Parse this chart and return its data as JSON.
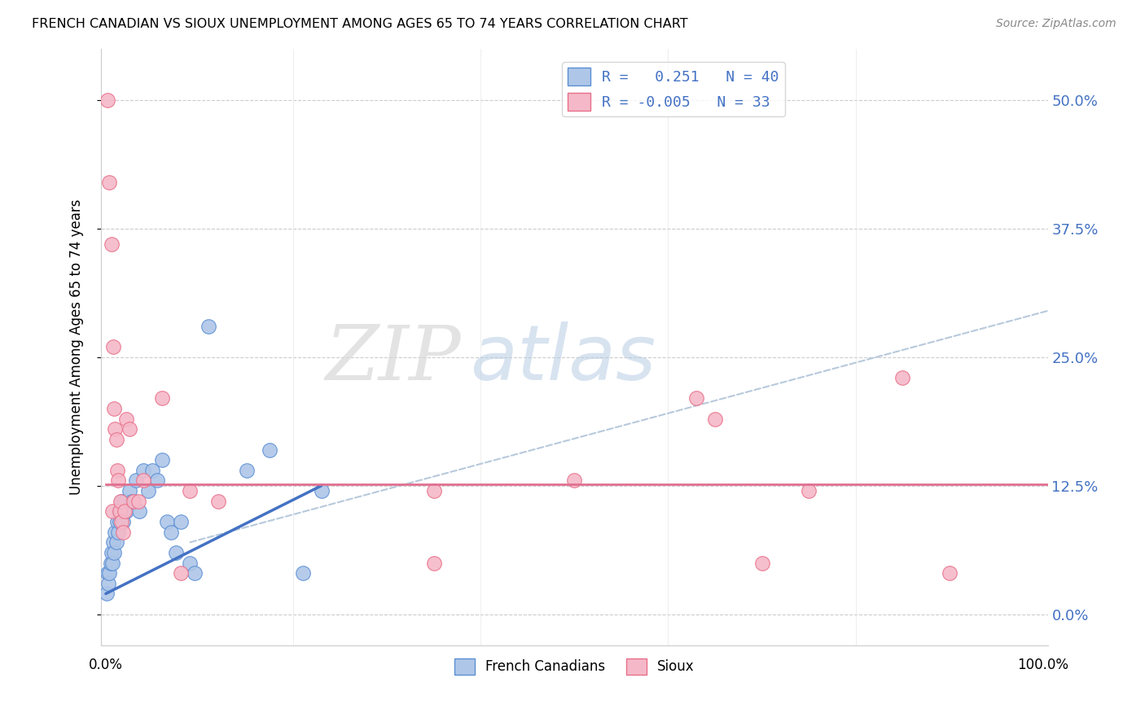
{
  "title": "FRENCH CANADIAN VS SIOUX UNEMPLOYMENT AMONG AGES 65 TO 74 YEARS CORRELATION CHART",
  "source": "Source: ZipAtlas.com",
  "ylabel": "Unemployment Among Ages 65 to 74 years",
  "ytick_labels": [
    "0.0%",
    "12.5%",
    "25.0%",
    "37.5%",
    "50.0%"
  ],
  "ytick_values": [
    0.0,
    0.125,
    0.25,
    0.375,
    0.5
  ],
  "xlim": [
    -0.005,
    1.005
  ],
  "ylim": [
    -0.03,
    0.55
  ],
  "legend_label1": "R =   0.251   N = 40",
  "legend_label2": "R = -0.005   N = 33",
  "watermark_zip": "ZIP",
  "watermark_atlas": "atlas",
  "blue_color": "#aec6e8",
  "pink_color": "#f5b8c8",
  "blue_edge_color": "#5b8fd4",
  "pink_edge_color": "#e8708a",
  "blue_line_color": "#4472c4",
  "pink_line_color": "#e07090",
  "right_label_color": "#4472c4",
  "blue_scatter": [
    [
      0.001,
      0.02
    ],
    [
      0.002,
      0.04
    ],
    [
      0.003,
      0.03
    ],
    [
      0.004,
      0.04
    ],
    [
      0.005,
      0.05
    ],
    [
      0.006,
      0.06
    ],
    [
      0.007,
      0.05
    ],
    [
      0.008,
      0.07
    ],
    [
      0.009,
      0.06
    ],
    [
      0.01,
      0.08
    ],
    [
      0.011,
      0.07
    ],
    [
      0.012,
      0.09
    ],
    [
      0.013,
      0.08
    ],
    [
      0.014,
      0.1
    ],
    [
      0.015,
      0.09
    ],
    [
      0.016,
      0.1
    ],
    [
      0.017,
      0.11
    ],
    [
      0.018,
      0.09
    ],
    [
      0.02,
      0.11
    ],
    [
      0.022,
      0.1
    ],
    [
      0.025,
      0.12
    ],
    [
      0.028,
      0.11
    ],
    [
      0.032,
      0.13
    ],
    [
      0.036,
      0.1
    ],
    [
      0.04,
      0.14
    ],
    [
      0.045,
      0.12
    ],
    [
      0.05,
      0.14
    ],
    [
      0.055,
      0.13
    ],
    [
      0.06,
      0.15
    ],
    [
      0.065,
      0.09
    ],
    [
      0.07,
      0.08
    ],
    [
      0.075,
      0.06
    ],
    [
      0.08,
      0.09
    ],
    [
      0.09,
      0.05
    ],
    [
      0.095,
      0.04
    ],
    [
      0.11,
      0.28
    ],
    [
      0.15,
      0.14
    ],
    [
      0.175,
      0.16
    ],
    [
      0.21,
      0.04
    ],
    [
      0.23,
      0.12
    ]
  ],
  "pink_scatter": [
    [
      0.002,
      0.5
    ],
    [
      0.004,
      0.42
    ],
    [
      0.006,
      0.36
    ],
    [
      0.007,
      0.1
    ],
    [
      0.008,
      0.26
    ],
    [
      0.009,
      0.2
    ],
    [
      0.01,
      0.18
    ],
    [
      0.011,
      0.17
    ],
    [
      0.012,
      0.14
    ],
    [
      0.013,
      0.13
    ],
    [
      0.015,
      0.1
    ],
    [
      0.016,
      0.11
    ],
    [
      0.017,
      0.09
    ],
    [
      0.018,
      0.08
    ],
    [
      0.02,
      0.1
    ],
    [
      0.022,
      0.19
    ],
    [
      0.025,
      0.18
    ],
    [
      0.03,
      0.11
    ],
    [
      0.035,
      0.11
    ],
    [
      0.04,
      0.13
    ],
    [
      0.06,
      0.21
    ],
    [
      0.08,
      0.04
    ],
    [
      0.09,
      0.12
    ],
    [
      0.12,
      0.11
    ],
    [
      0.35,
      0.12
    ],
    [
      0.35,
      0.05
    ],
    [
      0.5,
      0.13
    ],
    [
      0.63,
      0.21
    ],
    [
      0.65,
      0.19
    ],
    [
      0.7,
      0.05
    ],
    [
      0.75,
      0.12
    ],
    [
      0.85,
      0.23
    ],
    [
      0.9,
      0.04
    ]
  ],
  "blue_trend_x": [
    0.0,
    0.23
  ],
  "blue_trend_y": [
    0.02,
    0.125
  ],
  "pink_trend_x": [
    0.0,
    1.005
  ],
  "pink_trend_y": [
    0.126,
    0.126
  ],
  "dashed_trend_x": [
    0.09,
    1.005
  ],
  "dashed_trend_y": [
    0.07,
    0.295
  ]
}
